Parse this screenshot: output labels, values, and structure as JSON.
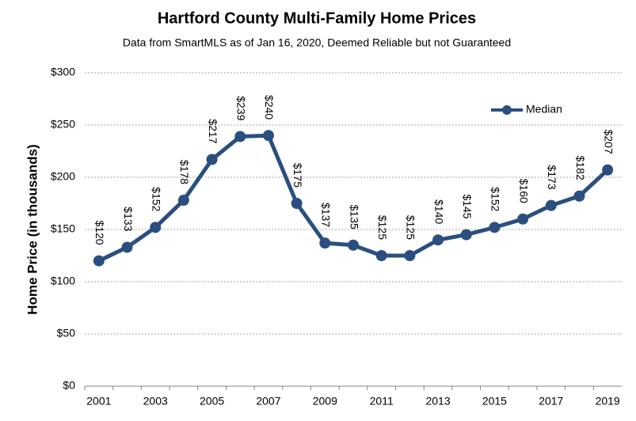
{
  "chart_data": {
    "type": "line",
    "title": "Hartford County Multi-Family Home Prices",
    "subtitle": "Data from SmartMLS as of Jan 16, 2020, Deemed Reliable but not Guaranteed",
    "y_label": "Home Price (in thousands)",
    "categories": [
      "2001",
      null,
      "2003",
      null,
      "2005",
      null,
      "2007",
      null,
      "2009",
      null,
      "2011",
      null,
      "2013",
      null,
      "2015",
      null,
      "2017",
      null,
      "2019"
    ],
    "series": [
      {
        "name": "Median",
        "color": "#2a4f7f",
        "values": [
          120,
          133,
          152,
          178,
          217,
          239,
          240,
          175,
          137,
          135,
          125,
          125,
          140,
          145,
          152,
          160,
          173,
          182,
          207
        ],
        "value_labels": [
          "$120",
          "$133",
          "$152",
          "$178",
          "$217",
          "$239",
          "$240",
          "$175",
          "$137",
          "$135",
          "$125",
          "$125",
          "$140",
          "$145",
          "$152",
          "$160",
          "$173",
          "$182",
          "$207"
        ]
      }
    ],
    "ylim": [
      0,
      300
    ],
    "yticks": [
      {
        "value": 0,
        "label": "$0"
      },
      {
        "value": 50,
        "label": "$50"
      },
      {
        "value": 100,
        "label": "$100"
      },
      {
        "value": 150,
        "label": "$150"
      },
      {
        "value": 200,
        "label": "$200"
      },
      {
        "value": 250,
        "label": "$250"
      },
      {
        "value": 300,
        "label": "$300"
      }
    ],
    "grid": true,
    "legend": "upper right"
  }
}
